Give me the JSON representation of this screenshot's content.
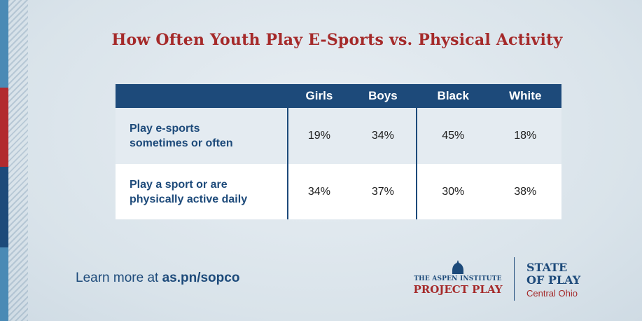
{
  "title": "How Often Youth Play E-Sports vs. Physical Activity",
  "table": {
    "columns": [
      "Girls",
      "Boys",
      "Black",
      "White"
    ],
    "rows": [
      {
        "label_line1": "Play e-sports",
        "label_line2": "sometimes or often",
        "values": [
          "19%",
          "34%",
          "45%",
          "18%"
        ]
      },
      {
        "label_line1": "Play a sport or are",
        "label_line2": "physically active daily",
        "values": [
          "34%",
          "37%",
          "30%",
          "38%"
        ]
      }
    ]
  },
  "footer": {
    "link_prefix": "Learn more at ",
    "link_url": "as.pn/sopco"
  },
  "logos": {
    "aspen_institute": "THE ASPEN INSTITUTE",
    "project_play": "PROJECT PLAY",
    "state_of_play_line1": "STATE",
    "state_of_play_line2": "OF PLAY",
    "region": "Central Ohio"
  },
  "colors": {
    "title_red": "#a52a2a",
    "header_blue": "#1d4a7a",
    "background": "#dfe7ee",
    "stripe_light_blue": "#4a8ab5",
    "stripe_red": "#b22a2e",
    "stripe_dark_blue": "#1d4a7a"
  },
  "icons": [
    "aspen-dome-icon"
  ]
}
